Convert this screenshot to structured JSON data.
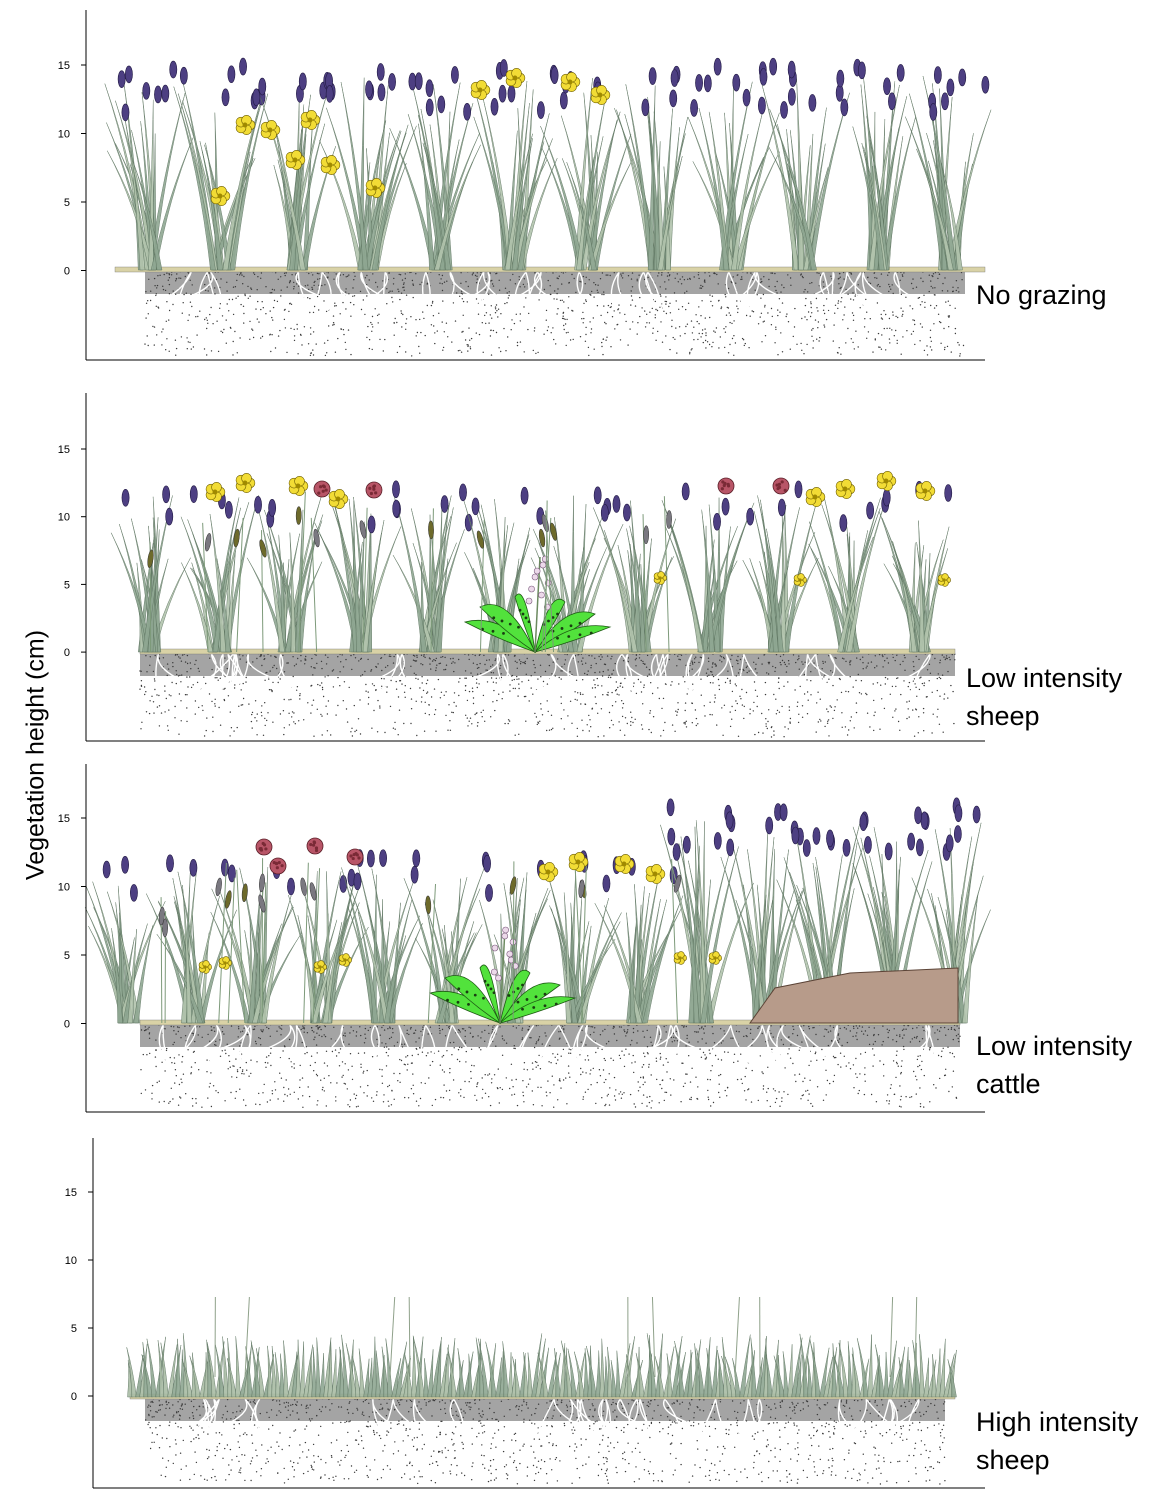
{
  "y_axis_title": "Vegetation height (cm)",
  "tick_labels": [
    "15",
    "10",
    "5",
    "0"
  ],
  "tick_values": [
    15,
    10,
    5,
    0
  ],
  "colors": {
    "grass": "#8fa792",
    "grass_dark": "#5e7561",
    "lavender_flower": "#4d3f82",
    "buttercup": "#f2dc35",
    "clover": "#b85567",
    "orchid_leaf": "#52e23c",
    "soil": "#3a3a3a",
    "dung": "#b79b8a"
  },
  "panels": [
    {
      "label_line1": "No grazing",
      "label_line2": "",
      "canopy_height": 13.5,
      "features": [
        "lavender",
        "buttercup"
      ]
    },
    {
      "label_line1": "Low intensity",
      "label_line2": "sheep",
      "canopy_height": 11,
      "features": [
        "lavender",
        "buttercup",
        "clover",
        "orchid",
        "seedheads"
      ]
    },
    {
      "label_line1": "Low intensity",
      "label_line2": "cattle",
      "canopy_height": 11,
      "features": [
        "lavender",
        "buttercup",
        "clover",
        "orchid",
        "seedheads",
        "dung"
      ]
    },
    {
      "label_line1": "High intensity",
      "label_line2": "sheep",
      "canopy_height": 4.5,
      "features": [
        "short-turf"
      ]
    }
  ]
}
